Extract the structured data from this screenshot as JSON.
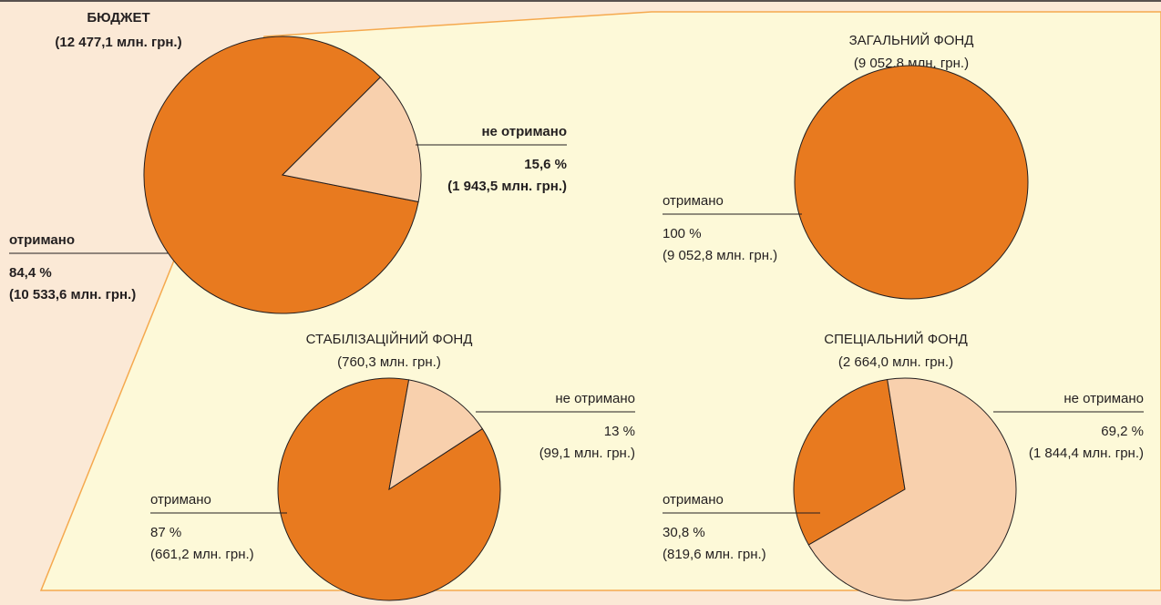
{
  "chart_data": [
    {
      "type": "pie",
      "title": "БЮДЖЕТ",
      "subtitle": "(12 477,1 млн. грн.)",
      "categories": [
        "отримано",
        "не отримано"
      ],
      "values": [
        84.4,
        15.6
      ],
      "value_labels": [
        "84,4 %",
        "15,6 %"
      ],
      "amount_labels": [
        "(10 533,6 млн. грн.)",
        "(1 943,5 млн. грн.)"
      ],
      "colors": [
        "#e87a1f",
        "#f8d0ad"
      ]
    },
    {
      "type": "pie",
      "title": "ЗАГАЛЬНИЙ ФОНД",
      "subtitle": "(9 052,8 млн. грн.)",
      "categories": [
        "отримано"
      ],
      "values": [
        100
      ],
      "value_labels": [
        "100 %"
      ],
      "amount_labels": [
        "(9 052,8 млн. грн.)"
      ],
      "colors": [
        "#e87a1f"
      ]
    },
    {
      "type": "pie",
      "title": "СТАБІЛІЗАЦІЙНИЙ ФОНД",
      "subtitle": "(760,3 млн. грн.)",
      "categories": [
        "отримано",
        "не отримано"
      ],
      "values": [
        87,
        13
      ],
      "value_labels": [
        "87 %",
        "13 %"
      ],
      "amount_labels": [
        "(661,2 млн. грн.)",
        "(99,1 млн. грн.)"
      ],
      "colors": [
        "#e87a1f",
        "#f8d0ad"
      ]
    },
    {
      "type": "pie",
      "title": "СПЕЦІАЛЬНИЙ ФОНД",
      "subtitle": "(2 664,0 млн. грн.)",
      "categories": [
        "отримано",
        "не отримано"
      ],
      "values": [
        30.8,
        69.2
      ],
      "value_labels": [
        "30,8 %",
        "69,2 %"
      ],
      "amount_labels": [
        "(819,6 млн. грн.)",
        "(1 844,4 млн. грн.)"
      ],
      "colors": [
        "#e87a1f",
        "#f8d0ad"
      ]
    }
  ]
}
